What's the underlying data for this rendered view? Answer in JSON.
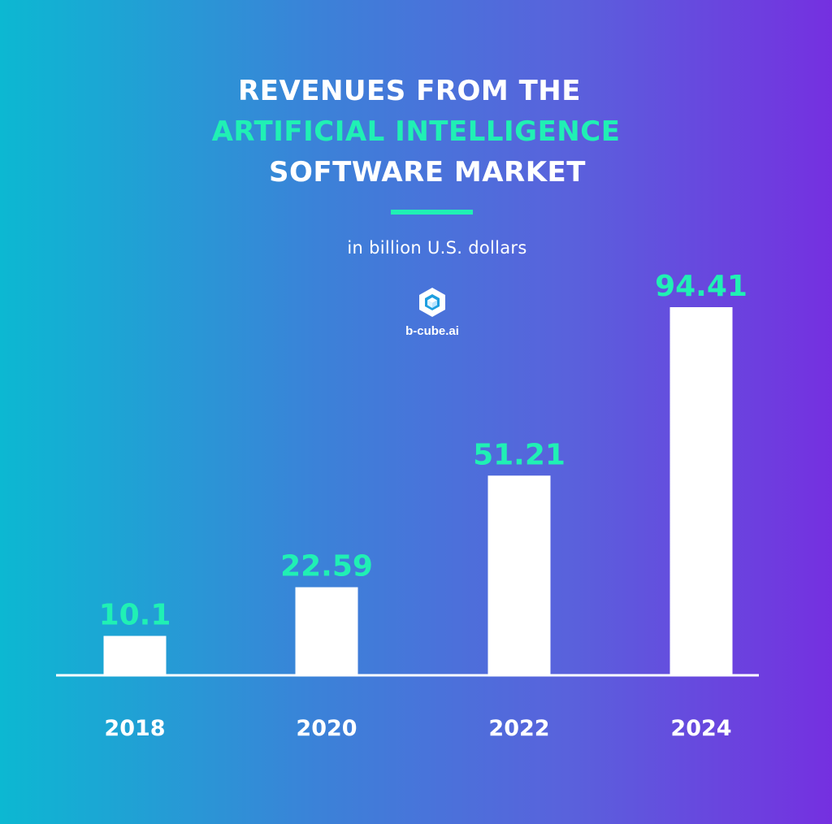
{
  "header": {
    "title_line_1": "REVENUES FROM THE",
    "title_line_2": "ARTIFICIAL INTELLIGENCE",
    "title_line_3": "SOFTWARE MARKET",
    "subtitle": "in billion U.S. dollars"
  },
  "brand": {
    "name": "b-cube.ai",
    "icon": "hexagon-cube-logo-icon"
  },
  "colors": {
    "accent": "#20f0b4",
    "bar": "#ffffff",
    "gradient_start": "#0cb8d2",
    "gradient_end": "#7530e0"
  },
  "chart_data": {
    "type": "bar",
    "title": "REVENUES FROM THE ARTIFICIAL INTELLIGENCE SOFTWARE MARKET",
    "ylabel": "in billion U.S. dollars",
    "xlabel": "",
    "categories": [
      "2018",
      "2020",
      "2022",
      "2024"
    ],
    "values": [
      10.1,
      22.59,
      51.21,
      94.41
    ],
    "value_labels": [
      "10.1",
      "22.59",
      "51.21",
      "94.41"
    ],
    "ylim": [
      0,
      94.41
    ],
    "grid": false,
    "legend": "none"
  }
}
